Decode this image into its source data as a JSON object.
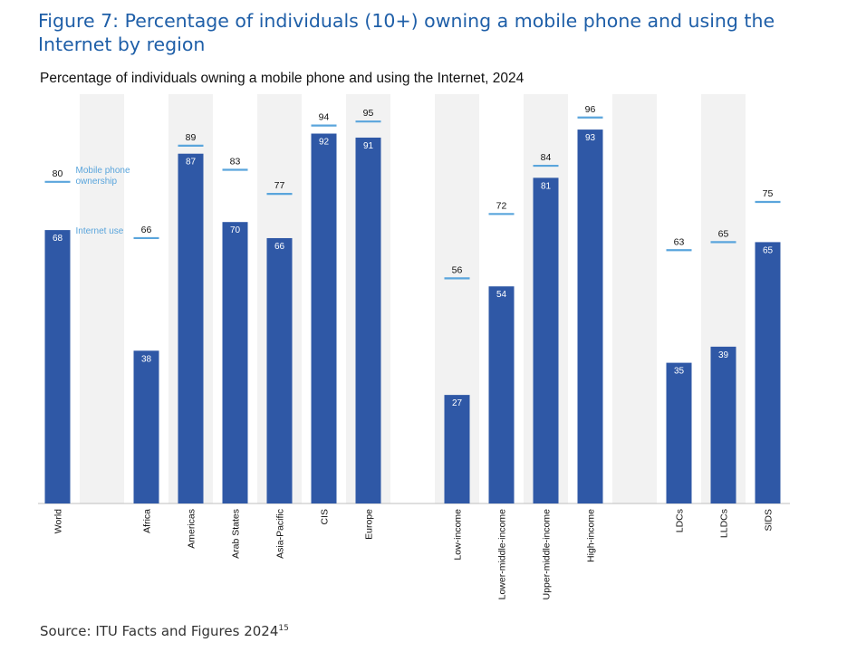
{
  "figure": {
    "title": "Figure 7: Percentage of individuals (10+) owning a mobile phone and using the Internet by region",
    "source": "Source: ITU Facts and Figures 2024",
    "source_ref": "15"
  },
  "chart_data": {
    "type": "bar",
    "title": "Percentage of individuals owning a mobile phone and using the Internet, 2024",
    "xlabel": "",
    "ylabel": "",
    "ylim": [
      0,
      100
    ],
    "grid": false,
    "legend_placement": "inline annotations next to World bar",
    "categories": [
      "World",
      "Africa",
      "Americas",
      "Arab States",
      "Asia-Pacific",
      "CIS",
      "Europe",
      "Low-income",
      "Lower-middle-income",
      "Upper-middle-income",
      "High-income",
      "LDCs",
      "LLDCs",
      "SIDS"
    ],
    "series": [
      {
        "name": "Internet use",
        "mark": "bar",
        "values": [
          68,
          38,
          87,
          70,
          66,
          92,
          91,
          27,
          54,
          81,
          93,
          35,
          39,
          65
        ]
      },
      {
        "name": "Mobile phone ownership",
        "mark": "tick",
        "values": [
          80,
          66,
          89,
          83,
          77,
          94,
          95,
          56,
          72,
          84,
          96,
          63,
          65,
          75
        ]
      }
    ],
    "colors": {
      "bar": "#2f58a6",
      "tick": "#5aa5dc",
      "band": "#f2f2f2",
      "annotation": "#5aa5dc",
      "bar_label": "#ffffff",
      "tick_label": "#111111"
    }
  }
}
